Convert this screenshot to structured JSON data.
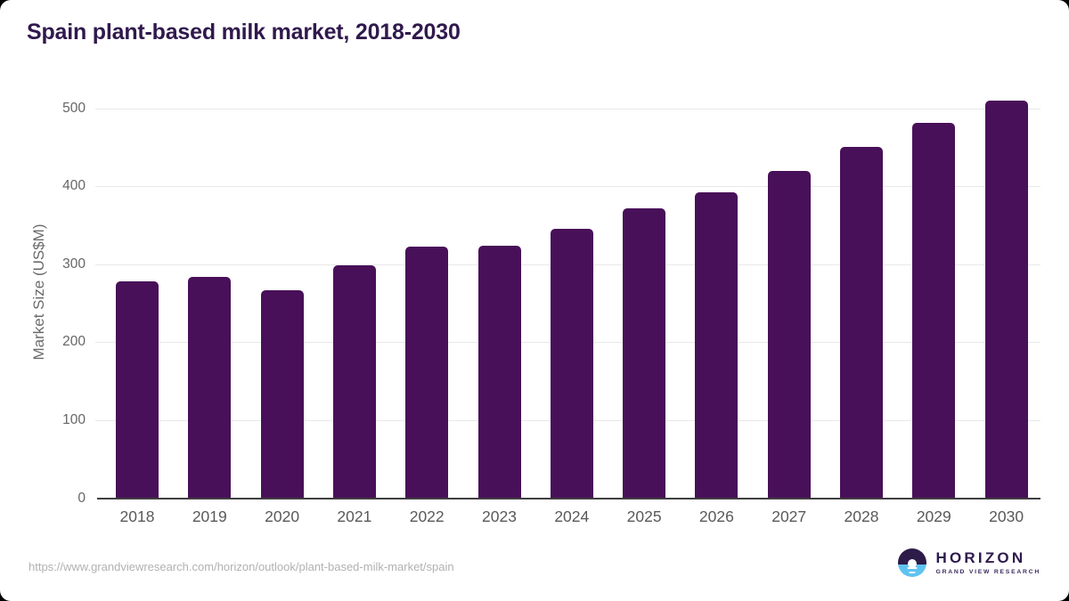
{
  "header": {
    "title": "Spain plant-based milk market, 2018-2030"
  },
  "chart_data": {
    "type": "bar",
    "title": "Spain plant-based milk market, 2018-2030",
    "categories": [
      "2018",
      "2019",
      "2020",
      "2021",
      "2022",
      "2023",
      "2024",
      "2025",
      "2026",
      "2027",
      "2028",
      "2029",
      "2030"
    ],
    "values": [
      278,
      284,
      266,
      298,
      322,
      324,
      345,
      372,
      392,
      419,
      450,
      481,
      510
    ],
    "xlabel": "",
    "ylabel": "Market Size (US$M)",
    "yticks": [
      0,
      100,
      200,
      300,
      400,
      500
    ],
    "ylim": [
      0,
      550
    ],
    "grid": "horizontal",
    "legend_position": "none",
    "bar_color": "#481058"
  },
  "footer": {
    "source_url": "https://www.grandviewresearch.com/horizon/outlook/plant-based-milk-market/spain",
    "logo": {
      "name": "HORIZON",
      "subtitle": "GRAND VIEW RESEARCH",
      "icon": "horizon-sunset-circle-icon",
      "purple": "#2d1b4a",
      "blue": "#5fc3f1"
    }
  }
}
